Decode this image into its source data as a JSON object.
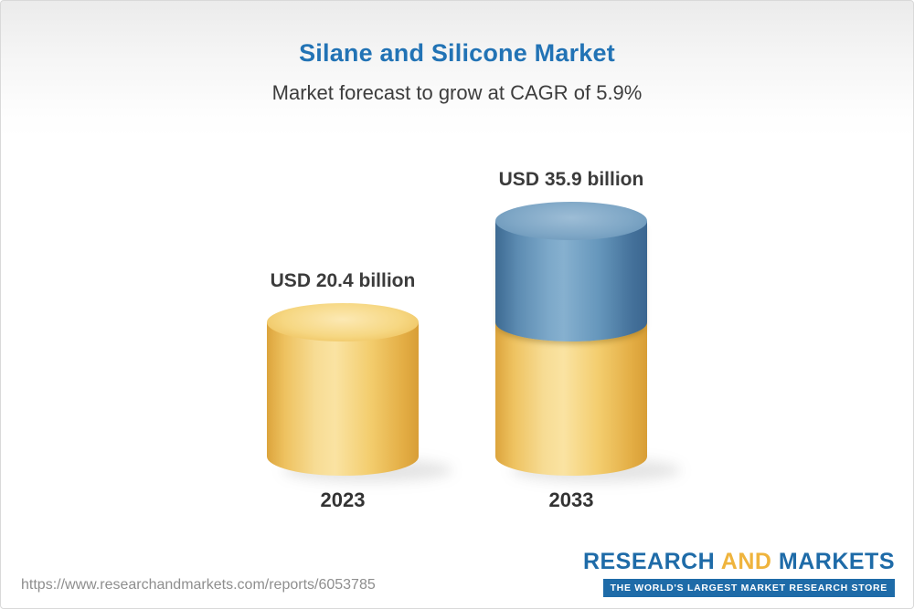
{
  "chart_data": {
    "type": "bar",
    "title": "Silane and Silicone Market",
    "subtitle": "Market forecast to grow at CAGR of 5.9%",
    "unit": "USD billion",
    "cagr_percent": 5.9,
    "categories": [
      "2023",
      "2033"
    ],
    "values": [
      20.4,
      35.9
    ],
    "bars": [
      {
        "category": "2023",
        "value": 20.4,
        "label": "USD 20.4 billion",
        "segments": [
          {
            "name": "base-2023",
            "value": 20.4,
            "color": "#F2CA66"
          }
        ]
      },
      {
        "category": "2033",
        "value": 35.9,
        "label": "USD 35.9 billion",
        "segments": [
          {
            "name": "base-2023",
            "value": 20.4,
            "color": "#F2CA66"
          },
          {
            "name": "growth-2023-2033",
            "value": 15.5,
            "color": "#6E9DC0"
          }
        ]
      }
    ],
    "colors": {
      "yellow": "#F2CA66",
      "blue": "#5E8FB5",
      "title_blue": "#2273B5"
    },
    "legend": null,
    "grid": false,
    "layout_hint": "3d-cylinder bars, bottom-aligned, value labels above bars, category labels below"
  },
  "footer": {
    "url": "https://www.researchandmarkets.com/reports/6053785",
    "logo": {
      "research": "RESEARCH",
      "and": "AND",
      "markets": "MARKETS",
      "tagline": "THE WORLD'S LARGEST MARKET RESEARCH STORE"
    }
  }
}
